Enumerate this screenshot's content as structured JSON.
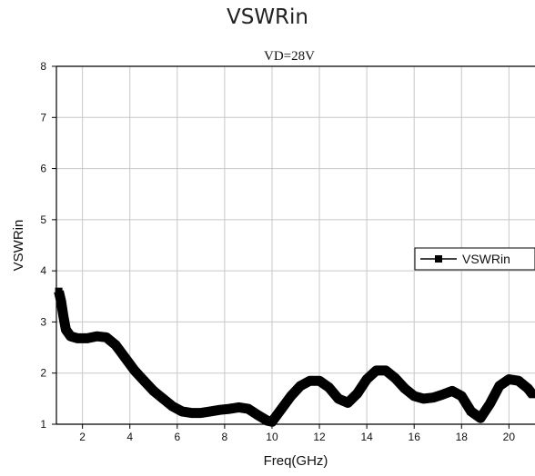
{
  "page_title": "VSWRin",
  "chart_data": {
    "type": "line",
    "title": "VSWRin",
    "annotation": "VD=28V",
    "xlabel": "Freq(GHz)",
    "ylabel": "VSWRin",
    "xlim": [
      0.9,
      21.1
    ],
    "ylim": [
      1,
      8
    ],
    "xticks": [
      2,
      4,
      6,
      8,
      10,
      12,
      14,
      16,
      18,
      20
    ],
    "yticks": [
      1,
      2,
      3,
      4,
      5,
      6,
      7,
      8
    ],
    "grid": true,
    "legend_position": "right",
    "series": [
      {
        "name": "VSWRin",
        "color": "#000000",
        "marker": "square",
        "x": [
          1.0,
          1.1,
          1.2,
          1.3,
          1.5,
          1.8,
          2.2,
          2.6,
          3.0,
          3.4,
          3.8,
          4.2,
          4.6,
          5.0,
          5.4,
          5.8,
          6.2,
          6.6,
          7.0,
          7.4,
          7.8,
          8.2,
          8.6,
          9.0,
          9.4,
          9.8,
          10.0,
          10.4,
          10.8,
          11.2,
          11.6,
          12.0,
          12.4,
          12.8,
          13.2,
          13.6,
          14.0,
          14.4,
          14.8,
          15.2,
          15.6,
          16.0,
          16.4,
          16.8,
          17.2,
          17.6,
          18.0,
          18.4,
          18.8,
          19.2,
          19.6,
          20.0,
          20.4,
          20.8,
          21.0
        ],
        "y": [
          3.6,
          3.4,
          3.1,
          2.85,
          2.72,
          2.68,
          2.68,
          2.72,
          2.7,
          2.55,
          2.3,
          2.05,
          1.85,
          1.65,
          1.5,
          1.35,
          1.25,
          1.22,
          1.22,
          1.25,
          1.28,
          1.3,
          1.33,
          1.3,
          1.18,
          1.07,
          1.05,
          1.3,
          1.55,
          1.75,
          1.85,
          1.85,
          1.72,
          1.5,
          1.42,
          1.6,
          1.88,
          2.05,
          2.05,
          1.9,
          1.7,
          1.55,
          1.5,
          1.52,
          1.58,
          1.65,
          1.55,
          1.25,
          1.12,
          1.4,
          1.75,
          1.88,
          1.85,
          1.7,
          1.58
        ]
      }
    ]
  }
}
